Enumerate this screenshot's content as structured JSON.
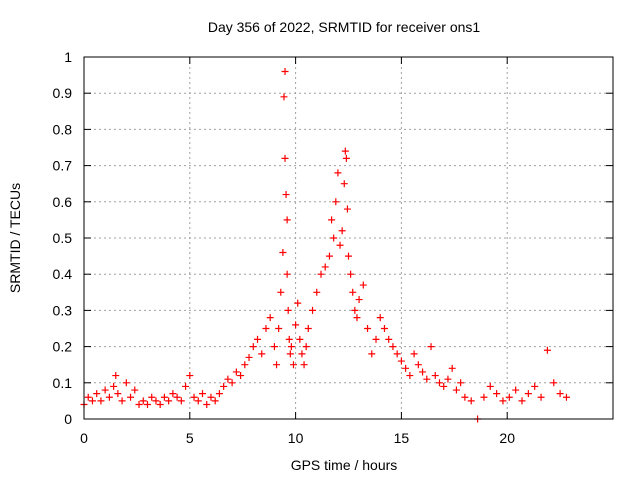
{
  "chart_data": {
    "type": "scatter",
    "title": "Day 356 of 2022, SRMTID for receiver ons1",
    "xlabel": "GPS time / hours",
    "ylabel": "SRMTID / TECUs",
    "xlim": [
      0,
      25
    ],
    "ylim": [
      0,
      1
    ],
    "xticks": [
      "0",
      "5",
      "10",
      "15",
      "20"
    ],
    "xtick_values": [
      0,
      5,
      10,
      15,
      20
    ],
    "yticks": [
      "0",
      "0.1",
      "0.2",
      "0.3",
      "0.4",
      "0.5",
      "0.6",
      "0.7",
      "0.8",
      "0.9",
      "1"
    ],
    "ytick_values": [
      0,
      0.1,
      0.2,
      0.3,
      0.4,
      0.5,
      0.6,
      0.7,
      0.8,
      0.9,
      1
    ],
    "grid": true,
    "marker": "plus",
    "color": "#ff0000",
    "series": [
      {
        "name": "SRMTID",
        "x": [
          0.0,
          0.2,
          0.4,
          0.6,
          0.8,
          1.0,
          1.2,
          1.4,
          1.5,
          1.6,
          1.8,
          2.0,
          2.2,
          2.4,
          2.6,
          2.8,
          3.0,
          3.2,
          3.4,
          3.6,
          3.8,
          4.0,
          4.2,
          4.4,
          4.6,
          4.8,
          5.0,
          5.2,
          5.4,
          5.6,
          5.8,
          6.0,
          6.2,
          6.4,
          6.6,
          6.8,
          7.0,
          7.2,
          7.4,
          7.6,
          7.8,
          8.0,
          8.2,
          8.4,
          8.6,
          8.8,
          9.0,
          9.1,
          9.2,
          9.3,
          9.4,
          9.45,
          9.5,
          9.5,
          9.55,
          9.6,
          9.6,
          9.65,
          9.7,
          9.75,
          9.8,
          9.9,
          10.0,
          10.1,
          10.2,
          10.3,
          10.4,
          10.5,
          10.6,
          10.8,
          11.0,
          11.2,
          11.4,
          11.6,
          11.7,
          11.8,
          11.9,
          12.0,
          12.1,
          12.2,
          12.3,
          12.35,
          12.4,
          12.45,
          12.5,
          12.6,
          12.7,
          12.8,
          12.9,
          13.0,
          13.2,
          13.4,
          13.6,
          13.8,
          14.0,
          14.2,
          14.4,
          14.6,
          14.8,
          15.0,
          15.2,
          15.4,
          15.6,
          15.8,
          16.0,
          16.2,
          16.4,
          16.6,
          16.8,
          17.0,
          17.2,
          17.4,
          17.6,
          17.8,
          18.0,
          18.3,
          18.6,
          18.9,
          19.2,
          19.5,
          19.8,
          20.1,
          20.4,
          20.7,
          21.0,
          21.3,
          21.6,
          21.9,
          22.2,
          22.5,
          22.8
        ],
        "y": [
          0.04,
          0.06,
          0.05,
          0.07,
          0.05,
          0.08,
          0.06,
          0.09,
          0.12,
          0.07,
          0.05,
          0.1,
          0.06,
          0.08,
          0.04,
          0.05,
          0.04,
          0.06,
          0.05,
          0.04,
          0.06,
          0.05,
          0.07,
          0.06,
          0.05,
          0.09,
          0.12,
          0.06,
          0.05,
          0.07,
          0.04,
          0.06,
          0.05,
          0.07,
          0.09,
          0.11,
          0.1,
          0.13,
          0.12,
          0.15,
          0.17,
          0.2,
          0.22,
          0.18,
          0.25,
          0.28,
          0.2,
          0.15,
          0.25,
          0.35,
          0.46,
          0.89,
          0.96,
          0.72,
          0.62,
          0.55,
          0.4,
          0.3,
          0.22,
          0.18,
          0.2,
          0.15,
          0.26,
          0.32,
          0.22,
          0.18,
          0.15,
          0.2,
          0.25,
          0.3,
          0.35,
          0.4,
          0.42,
          0.45,
          0.55,
          0.5,
          0.6,
          0.68,
          0.48,
          0.52,
          0.65,
          0.74,
          0.72,
          0.58,
          0.45,
          0.4,
          0.35,
          0.3,
          0.28,
          0.33,
          0.37,
          0.25,
          0.18,
          0.22,
          0.28,
          0.25,
          0.22,
          0.2,
          0.18,
          0.16,
          0.14,
          0.12,
          0.18,
          0.15,
          0.13,
          0.11,
          0.2,
          0.12,
          0.1,
          0.09,
          0.11,
          0.14,
          0.08,
          0.1,
          0.06,
          0.05,
          0.0,
          0.06,
          0.09,
          0.07,
          0.05,
          0.06,
          0.08,
          0.05,
          0.07,
          0.09,
          0.06,
          0.19,
          0.1,
          0.07,
          0.06
        ]
      }
    ]
  }
}
